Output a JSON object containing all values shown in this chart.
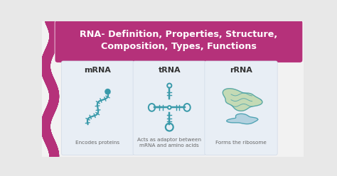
{
  "title_line1": "RNA- Definition, Properties, Structure,",
  "title_line2": "Composition, Types, Functions",
  "title_bg": "#b5317a",
  "title_text_color": "#ffffff",
  "main_bg": "#f0f0f0",
  "panel_bg": "#e8eef5",
  "left_stripe_color": "#b5317a",
  "panel_labels": [
    "mRNA",
    "tRNA",
    "rRNA"
  ],
  "panel_descs": [
    "Encodes proteins",
    "Acts as adaptor between\nmRNA and amino acids",
    "Forms the ribosome"
  ],
  "label_color": "#333333",
  "desc_color": "#666666",
  "icon_color": "#3a9aaa",
  "rrna_green": "#b8d4a0",
  "rrna_blue": "#a0c8d8",
  "figsize": [
    4.74,
    2.48
  ],
  "dpi": 100
}
